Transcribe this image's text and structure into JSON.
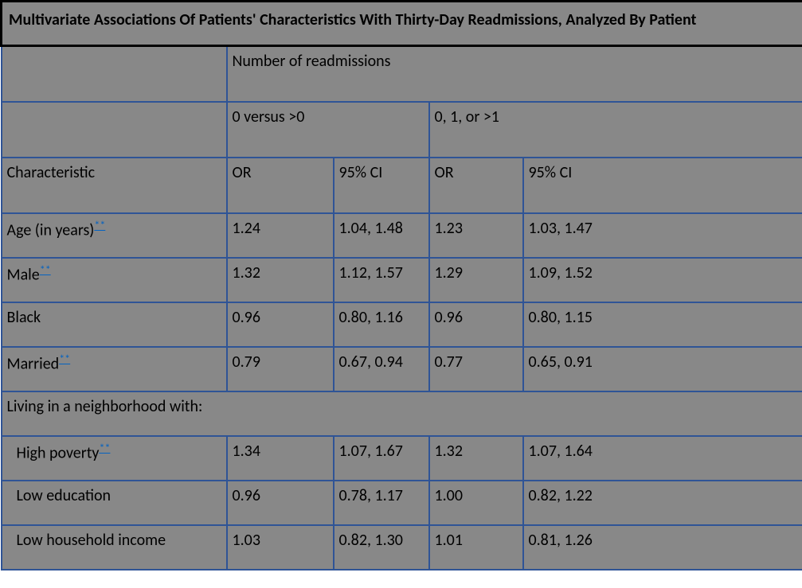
{
  "colors": {
    "cell_bg": "#888888",
    "border": "#2f5496",
    "title_border": "#000000",
    "text": "#000000",
    "link": "#0563c1"
  },
  "title": "Multivariate Associations Of Patients' Characteristics With Thirty-Day Readmissions, Analyzed By Patient",
  "superheader": "Number of readmissions",
  "group1_label": "0 versus >0",
  "group2_label": "0, 1, or >1",
  "col_characteristic": "Characteristic",
  "col_or": "OR",
  "col_ci": "95% CI",
  "rows": [
    {
      "label": "Age (in years)",
      "note": "**",
      "or1": "1.24",
      "ci1": "1.04, 1.48",
      "or2": "1.23",
      "ci2": "1.03, 1.47"
    },
    {
      "label": "Male",
      "note": "**",
      "or1": "1.32",
      "ci1": "1.12, 1.57",
      "or2": "1.29",
      "ci2": "1.09, 1.52"
    },
    {
      "label": "Black",
      "note": "",
      "or1": "0.96",
      "ci1": "0.80, 1.16",
      "or2": "0.96",
      "ci2": "0.80, 1.15"
    },
    {
      "label": "Married",
      "note": "**",
      "or1": "0.79",
      "ci1": "0.67, 0.94",
      "or2": "0.77",
      "ci2": "0.65, 0.91"
    }
  ],
  "section_label": "Living in a neighborhood with:",
  "subrows": [
    {
      "label": " High poverty",
      "note": "**",
      "or1": "1.34",
      "ci1": "1.07, 1.67",
      "or2": "1.32",
      "ci2": "1.07, 1.64"
    },
    {
      "label": " Low education",
      "note": "",
      "or1": "0.96",
      "ci1": "0.78, 1.17",
      "or2": "1.00",
      "ci2": "0.82, 1.22"
    },
    {
      "label": " Low household income",
      "note": "",
      "or1": "1.03",
      "ci1": "0.82, 1.30",
      "or2": "1.01",
      "ci2": "0.81, 1.26"
    }
  ]
}
